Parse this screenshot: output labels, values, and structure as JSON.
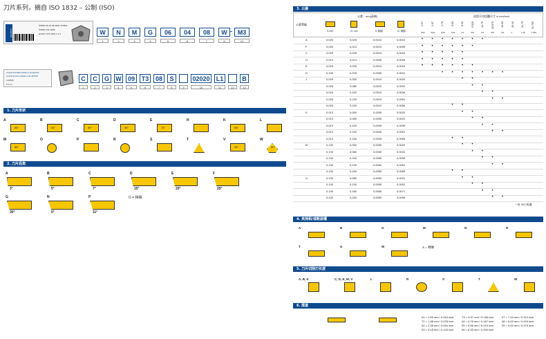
{
  "title": "刀片系列，摘自 ISO 1832 – 公制 (ISO)",
  "code1": [
    "W",
    "N",
    "M",
    "G",
    "06",
    "04",
    "08",
    "W",
    "M3"
  ],
  "code1_nums": [
    "1",
    "2",
    "3",
    "4",
    "5",
    "6",
    "7",
    "8",
    "12"
  ],
  "code2": [
    "C",
    "C",
    "G",
    "W",
    "09",
    "T3",
    "08",
    "S",
    "",
    "02020",
    "L1",
    "",
    "B"
  ],
  "code2_nums": [
    "1",
    "2",
    "3",
    "4",
    "5",
    "6",
    "7",
    "8",
    "9",
    "10",
    "11",
    "12",
    "13"
  ],
  "label_box1": {
    "brand": "SANDVIK",
    "lines": [
      "WNMG 06 04 08-WM3 TP2501",
      "WNMG 331-WM3",
      "H15117 STF 4001 1 2 3"
    ]
  },
  "label_box2": {
    "lines": [
      "CCGW 09T308S-02020-L1-B CB7015",
      "CCGW 32.52-S-02020-L1-B CB7015",
      "S-00515",
      "8 1 2 3"
    ]
  },
  "sec1": {
    "title": "1. 刀片形状",
    "items": [
      "A",
      "B",
      "C",
      "D",
      "E",
      "H",
      "K",
      "L",
      "M",
      "O",
      "P",
      "R",
      "S",
      "T",
      "V",
      "W"
    ],
    "angles": [
      "85°",
      "82°",
      "80°",
      "55°",
      "75°",
      "",
      "55°",
      "",
      "86°",
      "",
      "",
      "",
      "",
      "",
      "35°",
      "80°"
    ]
  },
  "sec2": {
    "title": "2. 刀片后角",
    "items": [
      "A",
      "B",
      "C",
      "D",
      "E",
      "F",
      "G",
      "N",
      "P"
    ],
    "angles": [
      "3°",
      "5°",
      "7°",
      "15°",
      "20°",
      "25°",
      "30°",
      "0°",
      "11°"
    ],
    "other": "O = 特殊"
  },
  "sec3": {
    "title": "3. 公差",
    "tol_label": "公差：mm(英制)",
    "class_label": "公差等级",
    "col_s": "S mm",
    "col_ic": "IC mm",
    "col_s_in": "S 英制",
    "col_ic_in": "IC 英制",
    "ic_header": "适用于内切圆尺寸 ic mm/inch",
    "ic_sizes": [
      "3.97",
      "3.97",
      "4.76",
      "5.56",
      "6.35",
      "9.525",
      "12.70",
      "15.875",
      "19.05",
      "25.40",
      "31.75",
      "31.750"
    ],
    "ic_inch": [
      "5/32",
      "5/32",
      "3/16",
      "7/32",
      "1/4",
      "3/8",
      "1/2",
      "5/8",
      "3/4",
      "1",
      "1.25",
      "1.250"
    ],
    "rows": [
      {
        "g": "A",
        "s": "0,025",
        "ic": "0,025",
        "si": "0,0010",
        "ii": "0,0010"
      },
      {
        "g": "F",
        "s": "0,025",
        "ic": "0,013",
        "si": "0,0010",
        "ii": "0,0005"
      },
      {
        "g": "C",
        "s": "0,025",
        "ic": "0,025",
        "si": "0,0010",
        "ii": "0,0010"
      },
      {
        "g": "H",
        "s": "0,013",
        "ic": "0,013",
        "si": "0,0005",
        "ii": "0,0005"
      },
      {
        "g": "E",
        "s": "0,025",
        "ic": "0,025",
        "si": "0,0010",
        "ii": "0,0010"
      },
      {
        "g": "G",
        "s": "0,130",
        "ic": "0,025",
        "si": "0,0050",
        "ii": "0,0010"
      },
      {
        "g": "J",
        "s": "0,025",
        "ic": "0,050",
        "si": "0,0010",
        "ii": "0,0020"
      },
      {
        "g": "",
        "s": "0,025",
        "ic": "0,080",
        "si": "0,0010",
        "ii": "0,0031"
      },
      {
        "g": "",
        "s": "0,025",
        "ic": "0,100",
        "si": "0,0010",
        "ii": "0,0039"
      },
      {
        "g": "",
        "s": "0,025",
        "ic": "0,130",
        "si": "0,0010",
        "ii": "0,0051"
      },
      {
        "g": "",
        "s": "0,025",
        "ic": "0,150",
        "si": "0,0010",
        "ii": "0,0059"
      },
      {
        "g": "K",
        "s": "0,013",
        "ic": "0,050",
        "si": "0,0005",
        "ii": "0,0020"
      },
      {
        "g": "",
        "s": "0,013",
        "ic": "0,080",
        "si": "0,0005",
        "ii": "0,0031"
      },
      {
        "g": "",
        "s": "0,013",
        "ic": "0,100",
        "si": "0,0005",
        "ii": "0,0039"
      },
      {
        "g": "",
        "s": "0,013",
        "ic": "0,130",
        "si": "0,0005",
        "ii": "0,0051"
      },
      {
        "g": "",
        "s": "0,013",
        "ic": "0,150",
        "si": "0,0005",
        "ii": "0,0059"
      },
      {
        "g": "M",
        "s": "0,130",
        "ic": "0,050",
        "si": "0,0050",
        "ii": "0,0020"
      },
      {
        "g": "",
        "s": "0,130",
        "ic": "0,080",
        "si": "0,0050",
        "ii": "0,0031"
      },
      {
        "g": "",
        "s": "0,130",
        "ic": "0,100",
        "si": "0,0050",
        "ii": "0,0039"
      },
      {
        "g": "",
        "s": "0,130",
        "ic": "0,130",
        "si": "0,0050",
        "ii": "0,0051"
      },
      {
        "g": "",
        "s": "0,130",
        "ic": "0,150",
        "si": "0,0050",
        "ii": "0,0059"
      },
      {
        "g": "U",
        "s": "0,130",
        "ic": "0,080",
        "si": "0,0050",
        "ii": "0,0031"
      },
      {
        "g": "",
        "s": "0,130",
        "ic": "0,130",
        "si": "0,0050",
        "ii": "0,0051"
      },
      {
        "g": "",
        "s": "0,130",
        "ic": "0,180",
        "si": "0,0050",
        "ii": "0,0071"
      },
      {
        "g": "",
        "s": "0,130",
        "ic": "0,250",
        "si": "0,0050",
        "ii": "0,0098"
      }
    ],
    "footnote": "* 在 ISO 标准"
  },
  "sec4": {
    "title": "4. 夹持和/或断屑槽",
    "items": [
      "A",
      "B",
      "G",
      "M",
      "N",
      "R",
      "T",
      "U",
      "W"
    ],
    "other": "X = 特殊"
  },
  "sec5": {
    "title": "5. 刀片切削刃长度",
    "items": [
      "A, B, K",
      "C, D, E, M, V",
      "L",
      "R",
      "S",
      "T",
      "W"
    ]
  },
  "sec6": {
    "title": "6. 厚度",
    "col1": [
      "01 = 1.59 mm / 0.063 inch",
      "T1 = 1.98 mm / 0.078 inch",
      "02 = 2.38 mm / 0.094 inch",
      "03 = 3.18 mm / 0.125 inch"
    ],
    "col2": [
      "T3 = 3.97 mm / 0.156 inch",
      "04 = 4.76 mm / 0.187 inch",
      "05 = 5.56 mm / 0.219 inch",
      "06 = 6.35 mm / 0.250 inch"
    ],
    "col3": [
      "07 = 7.94 mm / 0.313 inch",
      "08 = 8.00 mm / 0.315 inch",
      "09 = 9.52 mm / 0.375 inch",
      ""
    ]
  }
}
